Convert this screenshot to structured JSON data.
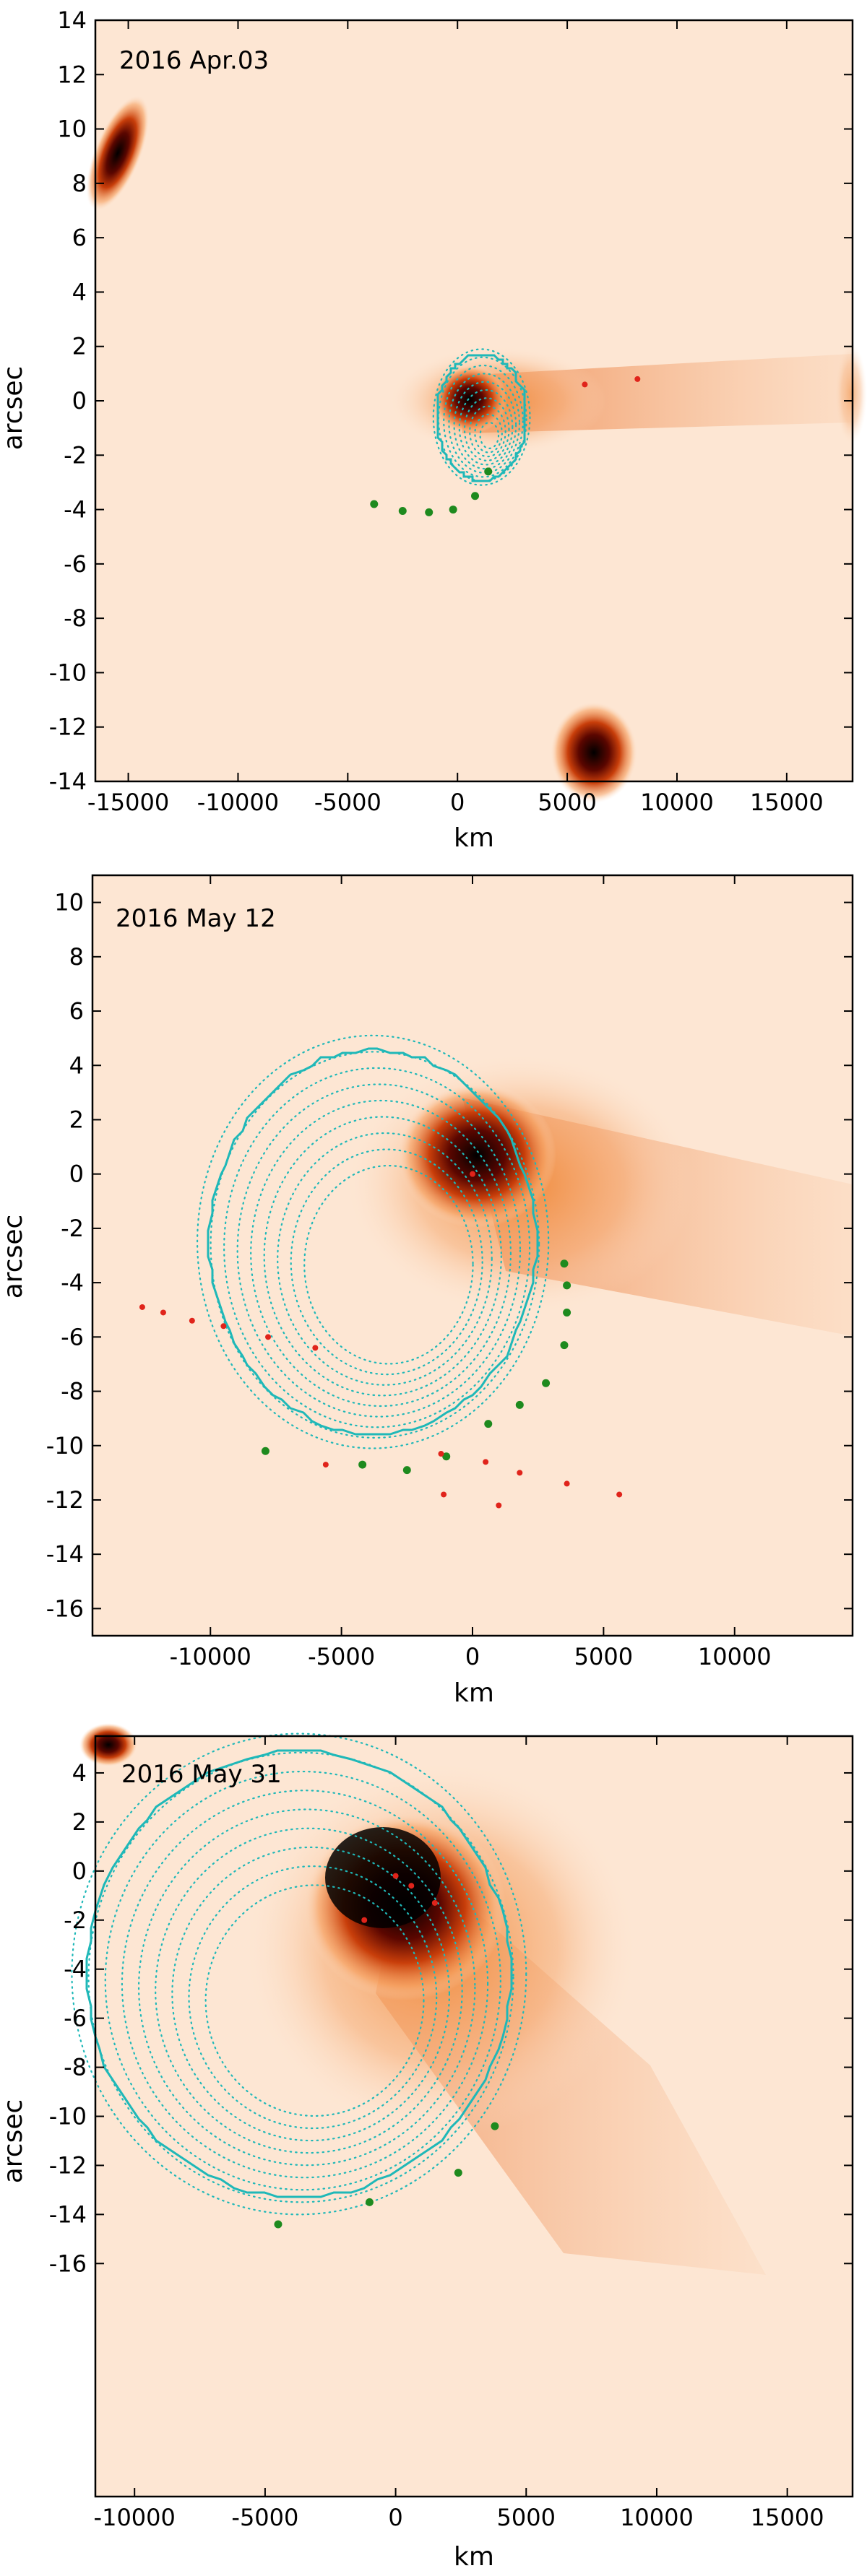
{
  "chart_data": [
    {
      "type": "scatter",
      "title": "2016 Apr.03",
      "xlabel": "km",
      "ylabel": "arcsec",
      "xlim": [
        -16500,
        18000
      ],
      "ylim": [
        -14,
        14
      ],
      "x_ticks": [
        -15000,
        -10000,
        -5000,
        0,
        5000,
        10000,
        15000
      ],
      "y_ticks": [
        14,
        12,
        10,
        8,
        6,
        4,
        2,
        0,
        -2,
        -4,
        -6,
        -8,
        -10,
        -12,
        -14
      ],
      "background": "orange intensity image of comet",
      "colors": {
        "curve": "#1fb8b8",
        "green_points": "#1e8a1e",
        "red_points": "#e0241b"
      },
      "green_points": [
        [
          -3800,
          -3.8
        ],
        [
          -2500,
          -4.05
        ],
        [
          -1300,
          -4.1
        ],
        [
          -200,
          -4.0
        ],
        [
          800,
          -3.5
        ],
        [
          1400,
          -2.6
        ]
      ],
      "red_points": [
        [
          5800,
          0.6
        ],
        [
          8200,
          0.8
        ]
      ]
    },
    {
      "type": "scatter",
      "title": "2016 May 12",
      "xlabel": "km",
      "ylabel": "arcsec",
      "xlim": [
        -14500,
        14500
      ],
      "ylim": [
        -17,
        11
      ],
      "x_ticks": [
        -10000,
        -5000,
        0,
        5000,
        10000
      ],
      "y_ticks": [
        10,
        8,
        6,
        4,
        2,
        0,
        -2,
        -4,
        -6,
        -8,
        -10,
        -12,
        -14,
        -16
      ],
      "background": "orange intensity image of comet",
      "colors": {
        "curve": "#1fb8b8",
        "green_points": "#1e8a1e",
        "red_points": "#e0241b"
      },
      "green_points": [
        [
          -7900,
          -10.2
        ],
        [
          -4200,
          -10.7
        ],
        [
          -2500,
          -10.9
        ],
        [
          -1000,
          -10.4
        ],
        [
          600,
          -9.2
        ],
        [
          1800,
          -8.5
        ],
        [
          2800,
          -7.7
        ],
        [
          3500,
          -6.3
        ],
        [
          3600,
          -5.1
        ],
        [
          3600,
          -4.1
        ],
        [
          3500,
          -3.3
        ]
      ],
      "red_points": [
        [
          -12600,
          -4.9
        ],
        [
          -11800,
          -5.1
        ],
        [
          -10700,
          -5.4
        ],
        [
          -9500,
          -5.6
        ],
        [
          -7800,
          -6.0
        ],
        [
          -6000,
          -6.4
        ],
        [
          -5600,
          -10.7
        ],
        [
          -1200,
          -10.3
        ],
        [
          500,
          -10.6
        ],
        [
          1000,
          -12.2
        ],
        [
          1800,
          -11.0
        ],
        [
          3600,
          -11.4
        ],
        [
          5600,
          -11.8
        ],
        [
          -1100,
          -11.8
        ],
        [
          0,
          0
        ]
      ]
    },
    {
      "type": "scatter",
      "title": "2016 May 31",
      "xlabel": "km",
      "ylabel": "arcsec",
      "xlim": [
        -11500,
        17500
      ],
      "ylim": [
        -25.5,
        5.5
      ],
      "x_ticks": [
        -10000,
        -5000,
        0,
        5000,
        10000,
        15000
      ],
      "y_ticks": [
        4,
        2,
        0,
        -2,
        -4,
        -6,
        -8,
        -10,
        -12,
        -14,
        -16
      ],
      "background": "orange intensity image of comet",
      "colors": {
        "curve": "#1fb8b8",
        "green_points": "#1e8a1e",
        "red_points": "#e0241b"
      },
      "green_points": [
        [
          -4500,
          -14.4
        ],
        [
          -1000,
          -13.5
        ],
        [
          2400,
          -12.3
        ],
        [
          3800,
          -10.4
        ]
      ],
      "red_points": [
        [
          0,
          -0.2
        ],
        [
          600,
          -0.6
        ],
        [
          1500,
          -1.3
        ],
        [
          -1200,
          -2.0
        ]
      ]
    }
  ]
}
